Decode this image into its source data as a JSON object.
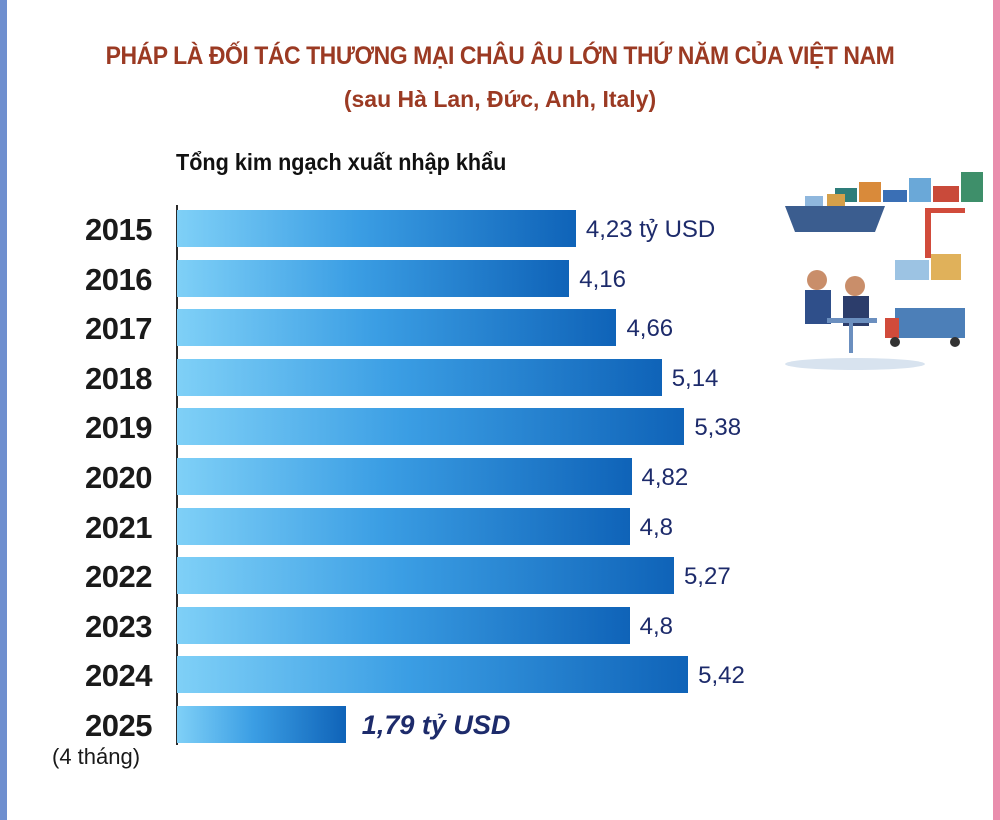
{
  "title": "PHÁP LÀ ĐỐI TÁC THƯƠNG MẠI CHÂU ÂU LỚN THỨ NĂM CỦA VIỆT NAM",
  "subtitle": "(sau Hà Lan, Đức, Anh, Italy)",
  "heading": "Tổng kim ngạch xuất nhập khẩu",
  "note": "(4 tháng)",
  "colors": {
    "title": "#9b3a23",
    "bar_light": "#7fd0f7",
    "bar_dark": "#0f63b8",
    "value_text": "#1d2b6b"
  },
  "illustration": "business-trade-port-icon",
  "chart_data": {
    "type": "bar",
    "orientation": "horizontal",
    "title": "Tổng kim ngạch xuất nhập khẩu",
    "categories": [
      "2015",
      "2016",
      "2017",
      "2018",
      "2019",
      "2020",
      "2021",
      "2022",
      "2023",
      "2024",
      "2025"
    ],
    "values": [
      4.23,
      4.16,
      4.66,
      5.14,
      5.38,
      4.82,
      4.8,
      5.27,
      4.8,
      5.42,
      1.79
    ],
    "labels": [
      "4,23 tỷ USD",
      "4,16",
      "4,66",
      "5,14",
      "5,38",
      "4,82",
      "4,8",
      "5,27",
      "4,8",
      "5,42",
      "1,79 tỷ USD"
    ],
    "xlim": [
      0,
      6
    ],
    "grid": false
  }
}
